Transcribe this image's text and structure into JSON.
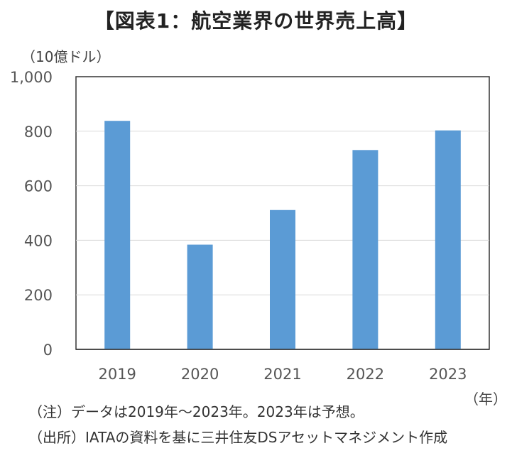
{
  "title": "【図表1：航空業界の世界売上高】",
  "y_unit": "（10億ドル）",
  "x_unit": "（年）",
  "notes": [
    "（注）データは2019年～2023年。2023年は予想。",
    "（出所）IATAの資料を基に三井住友DSアセットマネジメント作成"
  ],
  "colors": {
    "bar": "#5b9bd5",
    "grid": "#d9d9d9",
    "axis": "#333333"
  },
  "chart_data": {
    "type": "bar",
    "categories": [
      "2019",
      "2020",
      "2021",
      "2022",
      "2023"
    ],
    "values": [
      838,
      384,
      511,
      731,
      803
    ],
    "y_ticks": [
      "0",
      "200",
      "400",
      "600",
      "800",
      "1,000"
    ],
    "ylim": [
      0,
      1000
    ],
    "grid": true
  }
}
